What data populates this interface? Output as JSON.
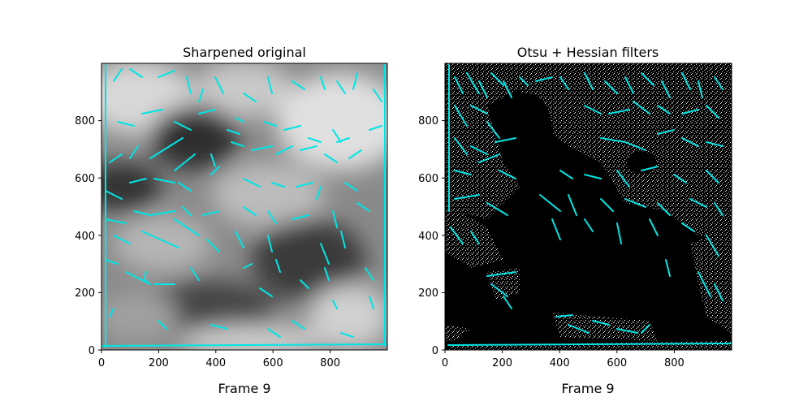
{
  "chart_data": [
    {
      "type": "image",
      "title": "Sharpened original",
      "xlabel": "Frame 9",
      "xlim": [
        0,
        1000
      ],
      "ylim": [
        0,
        1000
      ],
      "xticks": [
        "0",
        "200",
        "400",
        "600",
        "800"
      ],
      "yticks": [
        "0",
        "200",
        "400",
        "600",
        "800"
      ],
      "image_content": "grayscale sharpened solar image",
      "overlay_color": "#00e5e5"
    },
    {
      "type": "image",
      "title": "Otsu + Hessian filters",
      "xlabel": "Frame 9",
      "xlim": [
        0,
        1000
      ],
      "ylim": [
        0,
        1000
      ],
      "xticks": [
        "0",
        "200",
        "400",
        "600",
        "800"
      ],
      "yticks": [
        "0",
        "200",
        "400",
        "600",
        "800"
      ],
      "image_content": "binary mask (black background, white speckle) with detected features",
      "overlay_color": "#00e5e5"
    }
  ]
}
